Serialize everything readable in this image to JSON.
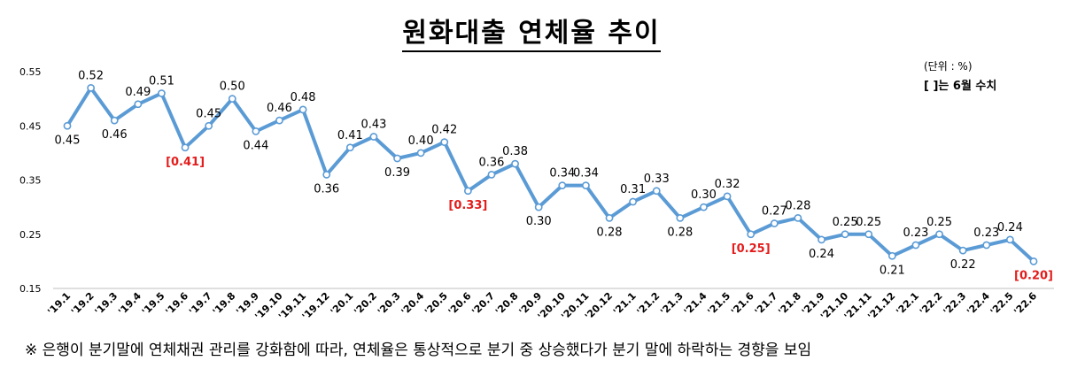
{
  "title": "원화대출 연체율 추이",
  "unit_note": "(단위 : %)",
  "bracket_note": "[   ]는 6월 수치",
  "footnote": "※ 은행이 분기말에 연체채권 관리를 강화함에 따라, 연체율은 통상적으로 분기 중 상승했다가 분기 말에 하락하는 경향을 보임",
  "colors": {
    "line": "#5b9bd5",
    "highlight": "#e31c1c",
    "marker_fill": "#ffffff"
  },
  "chart_data": {
    "type": "line",
    "title": "원화대출 연체율 추이",
    "xlabel": "",
    "ylabel": "",
    "ylim": [
      0.15,
      0.55
    ],
    "yticks": [
      "0.55",
      "0.45",
      "0.35",
      "0.25",
      "0.15"
    ],
    "grid": false,
    "categories": [
      "'19.1",
      "'19.2",
      "'19.3",
      "'19.4",
      "'19.5",
      "'19.6",
      "'19.7",
      "'19.8",
      "'19.9",
      "'19.10",
      "'19.11",
      "'19.12",
      "'20.1",
      "'20.2",
      "'20.3",
      "'20.4",
      "'20.5",
      "'20.6",
      "'20.7",
      "'20.8",
      "'20.9",
      "'20.10",
      "'20.11",
      "'20.12",
      "'21.1",
      "'21.2",
      "'21.3",
      "'21.4",
      "'21.5",
      "'21.6",
      "'21.7",
      "'21.8",
      "'21.9",
      "'21.10",
      "'21.11",
      "'21.12",
      "'22.1",
      "'22.2",
      "'22.3",
      "'22.4",
      "'22.5",
      "'22.6"
    ],
    "values": [
      0.45,
      0.52,
      0.46,
      0.49,
      0.51,
      0.41,
      0.45,
      0.5,
      0.44,
      0.46,
      0.48,
      0.36,
      0.41,
      0.43,
      0.39,
      0.4,
      0.42,
      0.33,
      0.36,
      0.38,
      0.3,
      0.34,
      0.34,
      0.28,
      0.31,
      0.33,
      0.28,
      0.3,
      0.32,
      0.25,
      0.27,
      0.28,
      0.24,
      0.25,
      0.25,
      0.21,
      0.23,
      0.25,
      0.22,
      0.23,
      0.24,
      0.2
    ],
    "labels": [
      "0.45",
      "0.52",
      "0.46",
      "0.49",
      "0.51",
      "[0.41]",
      "0.45",
      "0.50",
      "0.44",
      "0.46",
      "0.48",
      "0.36",
      "0.41",
      "0.43",
      "0.39",
      "0.40",
      "0.42",
      "[0.33]",
      "0.36",
      "0.38",
      "0.30",
      "0.34",
      "0.34",
      "0.28",
      "0.31",
      "0.33",
      "0.28",
      "0.30",
      "0.32",
      "[0.25]",
      "0.27",
      "0.28",
      "0.24",
      "0.25",
      "0.25",
      "0.21",
      "0.23",
      "0.25",
      "0.22",
      "0.23",
      "0.24",
      "[0.20]"
    ],
    "highlighted_indices": [
      5,
      17,
      29,
      41
    ]
  }
}
